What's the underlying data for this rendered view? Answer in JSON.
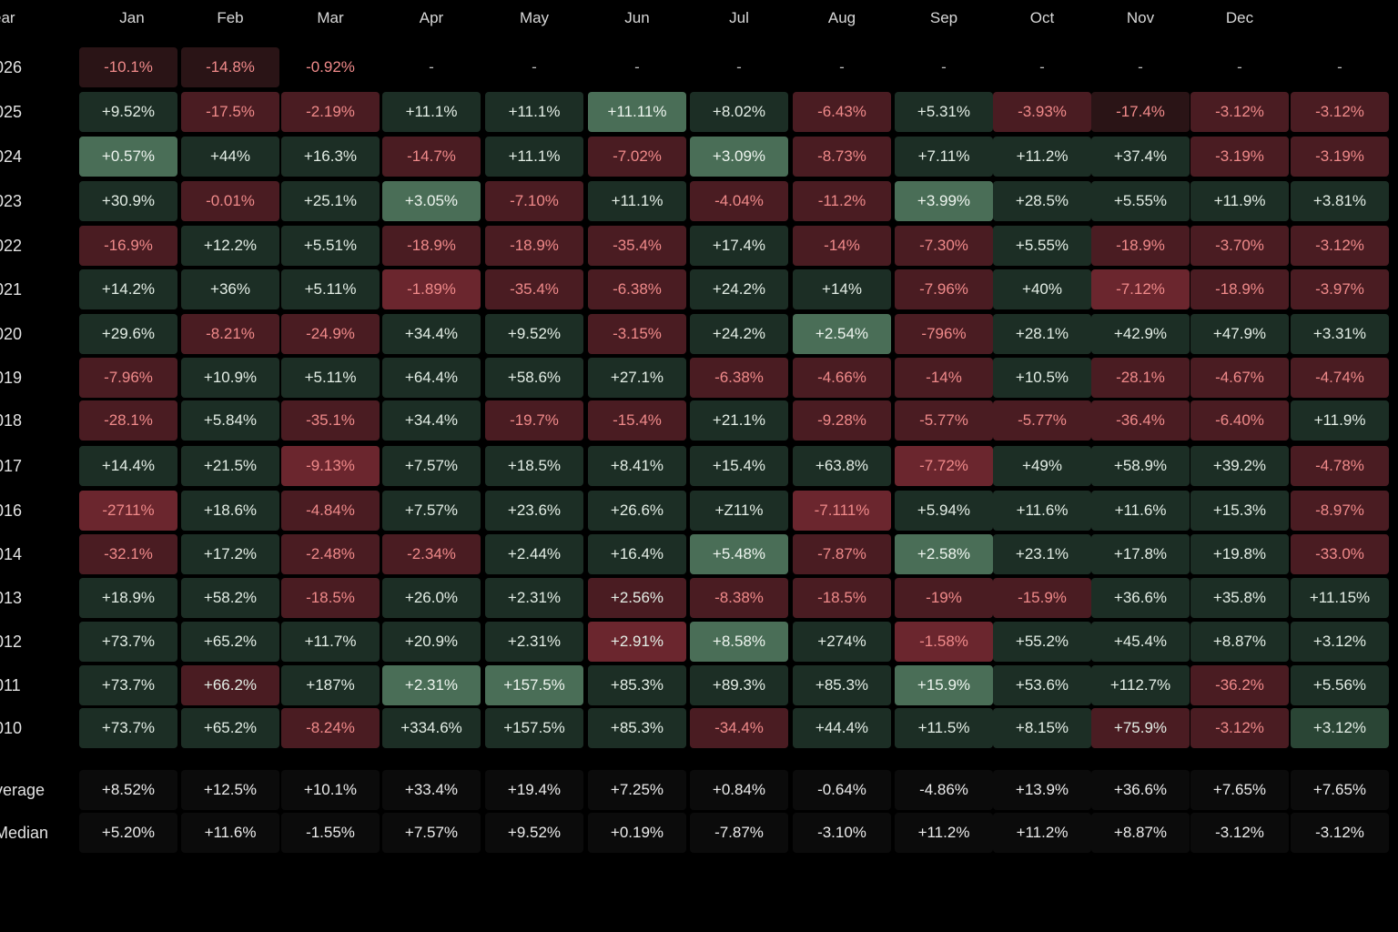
{
  "chart_data": {
    "type": "heatmap",
    "title": "",
    "year_header": "ear",
    "columns": [
      "Jan",
      "Feb",
      "Mar",
      "Apr",
      "May",
      "Jun",
      "Jul",
      "Aug",
      "Sep",
      "Oct",
      "Nov",
      "Dec",
      ""
    ],
    "rows": [
      {
        "label": "026",
        "values": [
          "-10.1%",
          "-14.8%",
          "-0.92%",
          "-",
          "-",
          "-",
          "-",
          "-",
          "-",
          "-",
          "-",
          "-",
          "-"
        ],
        "shade": [
          -1,
          -1,
          0,
          0,
          0,
          0,
          0,
          0,
          0,
          0,
          0,
          0,
          0
        ]
      },
      {
        "label": "025",
        "values": [
          "+9.52%",
          "-17.5%",
          "-2.19%",
          "+11.1%",
          "+11.1%",
          "+11.11%",
          "+8.02%",
          "-6.43%",
          "+5.31%",
          "-3.93%",
          "-17.4%",
          "-3.12%",
          "-3.12%"
        ],
        "shade": [
          1,
          -2,
          -2,
          1,
          1,
          3,
          1,
          -2,
          1,
          -2,
          -1,
          -2,
          -2
        ]
      },
      {
        "label": "024",
        "values": [
          "+0.57%",
          "+44%",
          "+16.3%",
          "-14.7%",
          "+11.1%",
          "-7.02%",
          "+3.09%",
          "-8.73%",
          "+7.11%",
          "+11.2%",
          "+37.4%",
          "-3.19%",
          "-3.19%"
        ],
        "shade": [
          3,
          1,
          1,
          -2,
          1,
          -2,
          3,
          -2,
          1,
          1,
          1,
          -2,
          -2
        ]
      },
      {
        "label": "023",
        "values": [
          "+30.9%",
          "-0.01%",
          "+25.1%",
          "+3.05%",
          "-7.10%",
          "+11.1%",
          "-4.04%",
          "-11.2%",
          "+3.99%",
          "+28.5%",
          "+5.55%",
          "+11.9%",
          "+3.81%"
        ],
        "shade": [
          1,
          -2,
          1,
          3,
          -2,
          1,
          -2,
          -2,
          3,
          1,
          1,
          1,
          1
        ]
      },
      {
        "label": "022",
        "values": [
          "-16.9%",
          "+12.2%",
          "+5.51%",
          "-18.9%",
          "-18.9%",
          "-35.4%",
          "+17.4%",
          "-14%",
          "-7.30%",
          "+5.55%",
          "-18.9%",
          "-3.70%",
          "-3.12%"
        ],
        "shade": [
          -2,
          1,
          1,
          -2,
          -2,
          -2,
          1,
          -2,
          -2,
          1,
          -2,
          -2,
          -2
        ]
      },
      {
        "label": "021",
        "values": [
          "+14.2%",
          "+36%",
          "+5.11%",
          "-1.89%",
          "-35.4%",
          "-6.38%",
          "+24.2%",
          "+14%",
          "-7.96%",
          "+40%",
          "-7.12%",
          "-18.9%",
          "-3.97%"
        ],
        "shade": [
          1,
          1,
          1,
          -3,
          -2,
          -2,
          1,
          1,
          -2,
          1,
          -3,
          -2,
          -2
        ]
      },
      {
        "label": "020",
        "values": [
          "+29.6%",
          "-8.21%",
          "-24.9%",
          "+34.4%",
          "+9.52%",
          "-3.15%",
          "+24.2%",
          "+2.54%",
          "-796%",
          "+28.1%",
          "+42.9%",
          "+47.9%",
          "+3.31%"
        ],
        "shade": [
          1,
          -2,
          -2,
          1,
          1,
          -2,
          1,
          3,
          -2,
          1,
          1,
          1,
          1
        ]
      },
      {
        "label": "019",
        "values": [
          "-7.96%",
          "+10.9%",
          "+5.11%",
          "+64.4%",
          "+58.6%",
          "+27.1%",
          "-6.38%",
          "-4.66%",
          "-14%",
          "+10.5%",
          "-28.1%",
          "-4.67%",
          "-4.74%"
        ],
        "shade": [
          -2,
          1,
          1,
          1,
          1,
          1,
          -2,
          -2,
          -2,
          1,
          -2,
          -2,
          -2
        ]
      },
      {
        "label": "018",
        "values": [
          "-28.1%",
          "+5.84%",
          "-35.1%",
          "+34.4%",
          "-19.7%",
          "-15.4%",
          "+21.1%",
          "-9.28%",
          "-5.77%",
          "-5.77%",
          "-36.4%",
          "-6.40%",
          "+11.9%"
        ],
        "shade": [
          -2,
          1,
          -2,
          1,
          -2,
          -2,
          1,
          -2,
          -2,
          -2,
          -2,
          -2,
          1
        ]
      },
      {
        "label": "017",
        "values": [
          "+14.4%",
          "+21.5%",
          "-9.13%",
          "+7.57%",
          "+18.5%",
          "+8.41%",
          "+15.4%",
          "+63.8%",
          "-7.72%",
          "+49%",
          "+58.9%",
          "+39.2%",
          "-4.78%"
        ],
        "shade": [
          1,
          1,
          -3,
          1,
          1,
          1,
          1,
          1,
          -3,
          1,
          1,
          1,
          -2
        ]
      },
      {
        "label": "016",
        "values": [
          "-2711%",
          "+18.6%",
          "-4.84%",
          "+7.57%",
          "+23.6%",
          "+26.6%",
          "+Z11%",
          "-7.111%",
          "+5.94%",
          "+11.6%",
          "+11.6%",
          "+15.3%",
          "-8.97%"
        ],
        "shade": [
          -3,
          1,
          -2,
          1,
          1,
          1,
          1,
          -3,
          1,
          1,
          1,
          1,
          -2
        ]
      },
      {
        "label": "014",
        "values": [
          "-32.1%",
          "+17.2%",
          "-2.48%",
          "-2.34%",
          "+2.44%",
          "+16.4%",
          "+5.48%",
          "-7.87%",
          "+2.58%",
          "+23.1%",
          "+17.8%",
          "+19.8%",
          "-33.0%"
        ],
        "shade": [
          -2,
          1,
          -2,
          -2,
          1,
          1,
          3,
          -2,
          3,
          1,
          1,
          1,
          -2
        ]
      },
      {
        "label": "013",
        "values": [
          "+18.9%",
          "+58.2%",
          "-18.5%",
          "+26.0%",
          "+2.31%",
          "+2.56%",
          "-8.38%",
          "-18.5%",
          "-19%",
          "-15.9%",
          "+36.6%",
          "+35.8%",
          "+11.15%"
        ],
        "shade": [
          1,
          1,
          -2,
          1,
          1,
          -2,
          -2,
          -2,
          -2,
          -2,
          1,
          1,
          1
        ]
      },
      {
        "label": "012",
        "values": [
          "+73.7%",
          "+65.2%",
          "+11.7%",
          "+20.9%",
          "+2.31%",
          "+2.91%",
          "+8.58%",
          "+274%",
          "-1.58%",
          "+55.2%",
          "+45.4%",
          "+8.87%",
          "+3.12%"
        ],
        "shade": [
          1,
          1,
          1,
          1,
          1,
          -3,
          3,
          1,
          -3,
          1,
          1,
          1,
          1
        ]
      },
      {
        "label": "011",
        "values": [
          "+73.7%",
          "+66.2%",
          "+187%",
          "+2.31%",
          "+157.5%",
          "+85.3%",
          "+89.3%",
          "+85.3%",
          "+15.9%",
          "+53.6%",
          "+112.7%",
          "-36.2%",
          "+5.56%"
        ],
        "shade": [
          1,
          -2,
          1,
          3,
          3,
          1,
          1,
          1,
          3,
          1,
          1,
          -2,
          1
        ]
      },
      {
        "label": "010",
        "values": [
          "+73.7%",
          "+65.2%",
          "-8.24%",
          "+334.6%",
          "+157.5%",
          "+85.3%",
          "-34.4%",
          "+44.4%",
          "+11.5%",
          "+8.15%",
          "+75.9%",
          "-3.12%",
          "+3.12%"
        ],
        "shade": [
          1,
          1,
          -2,
          1,
          1,
          1,
          -2,
          1,
          1,
          1,
          -2,
          -2,
          2
        ]
      }
    ],
    "summary": [
      {
        "label": "verage",
        "values": [
          "+8.52%",
          "+12.5%",
          "+10.1%",
          "+33.4%",
          "+19.4%",
          "+7.25%",
          "+0.84%",
          "-0.64%",
          "-4.86%",
          "+13.9%",
          "+36.6%",
          "+7.65%",
          "+7.65%"
        ]
      },
      {
        "label": "Median",
        "values": [
          "+5.20%",
          "+11.6%",
          "-1.55%",
          "+7.57%",
          "+9.52%",
          "+0.19%",
          "-7.87%",
          "-3.10%",
          "+11.2%",
          "+11.2%",
          "+8.87%",
          "-3.12%",
          "-3.12%"
        ]
      }
    ],
    "colors": {
      "pos_1": "#1c2e25",
      "pos_2": "#2a4535",
      "pos_3": "#4a6e57",
      "neg_1": "#2a1416",
      "neg_2": "#4a1c22",
      "neg_3": "#6b262e",
      "neutral": "#0b0b0b"
    }
  }
}
